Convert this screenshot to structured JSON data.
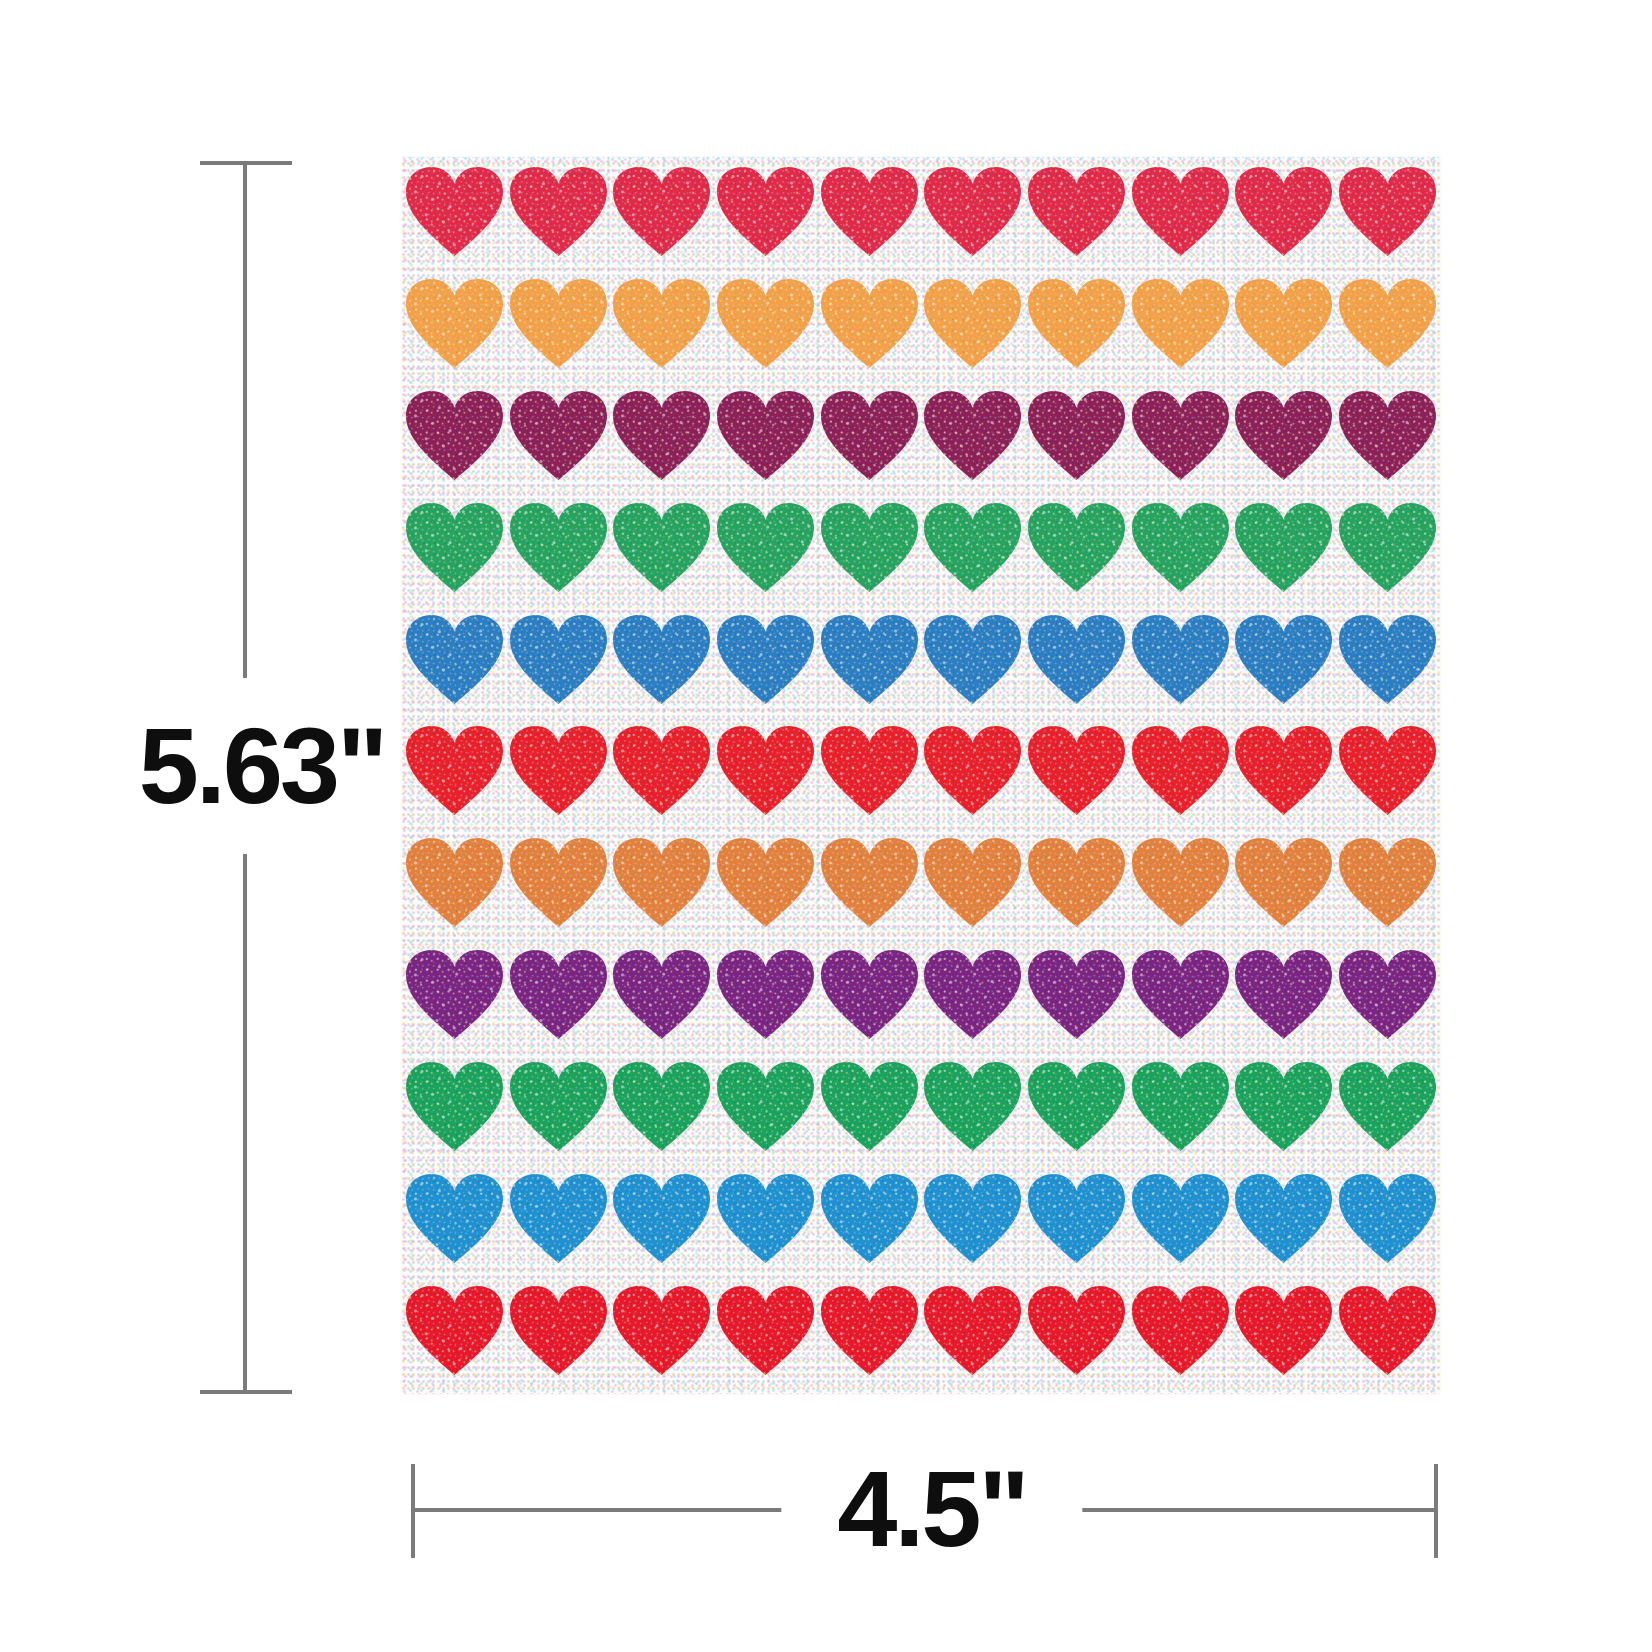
{
  "dimensions": {
    "height_label": "5.63\"",
    "width_label": "4.5\""
  },
  "sheet": {
    "rows_count": 11,
    "hearts_per_row": 10,
    "rows": [
      {
        "color_name": "crimson-red",
        "color": "#e02a4a"
      },
      {
        "color_name": "golden-orange",
        "color": "#f2a148"
      },
      {
        "color_name": "dark-magenta",
        "color": "#8c2158"
      },
      {
        "color_name": "emerald-green",
        "color": "#27a360"
      },
      {
        "color_name": "ocean-blue",
        "color": "#2b7ec2"
      },
      {
        "color_name": "bright-red",
        "color": "#e8202c"
      },
      {
        "color_name": "amber-orange",
        "color": "#e2813e"
      },
      {
        "color_name": "violet-purple",
        "color": "#7b2582"
      },
      {
        "color_name": "jade-green",
        "color": "#1ba25c"
      },
      {
        "color_name": "azure-blue",
        "color": "#1f90d0"
      },
      {
        "color_name": "scarlet-red",
        "color": "#e6182a"
      }
    ]
  },
  "style": {
    "dimension_line_color": "#7b7b7b",
    "label_text_color": "#0e0e0e",
    "sheet_base_color": "#fcfbfa"
  }
}
